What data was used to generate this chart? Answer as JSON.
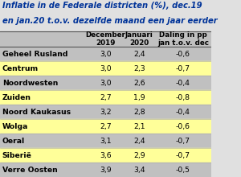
{
  "title_line1": "Inflatie in de Federale districten (%), dec.19",
  "title_line2": "en jan.20 t.o.v. dezelfde maand een jaar eerder",
  "col_headers": [
    "December\n2019",
    "Januari\n2020",
    "Daling in pp\njan t.o.v. dec"
  ],
  "rows": [
    [
      "Geheel Rusland",
      "3,0",
      "2,4",
      "-0,6"
    ],
    [
      "Centrum",
      "3,0",
      "2,3",
      "-0,7"
    ],
    [
      "Noordwesten",
      "3,0",
      "2,6",
      "-0,4"
    ],
    [
      "Zuiden",
      "2,7",
      "1,9",
      "-0,8"
    ],
    [
      "Noord Kaukasus",
      "3,2",
      "2,8",
      "-0,4"
    ],
    [
      "Wolga",
      "2,7",
      "2,1",
      "-0,6"
    ],
    [
      "Oeral",
      "3,1",
      "2,4",
      "-0,7"
    ],
    [
      "Siberië",
      "3,6",
      "2,9",
      "-0,7"
    ],
    [
      "Verre Oosten",
      "3,9",
      "3,4",
      "-0,5"
    ]
  ],
  "title_bg": "#e0e0e0",
  "header_bg": "#c0c0c0",
  "row_bg_odd": "#c0c0c0",
  "row_bg_even": "#ffff99",
  "title_color": "#003399",
  "title_fontsize": 7.2,
  "header_fontsize": 6.3,
  "cell_fontsize": 6.7,
  "fig_width": 3.0,
  "fig_height": 2.2
}
